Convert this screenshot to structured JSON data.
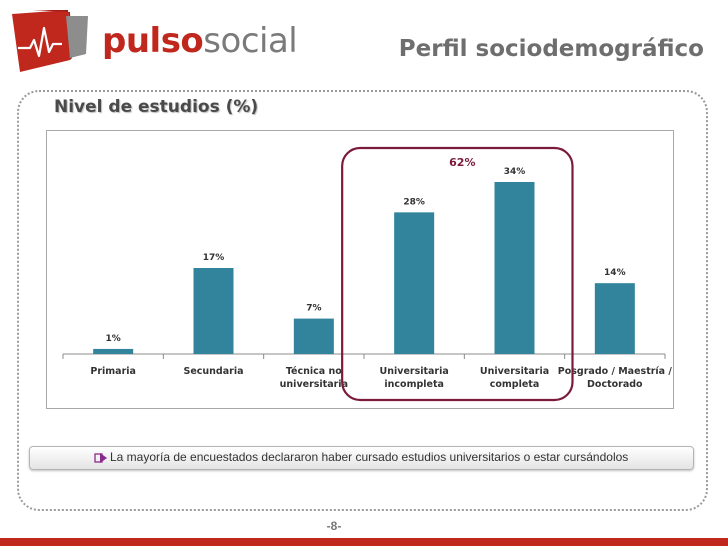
{
  "header": {
    "logo_text_part1": "pulso",
    "logo_text_part2": "social",
    "title": "Perfil sociodemográfico"
  },
  "section": {
    "title": "Nivel de estudios (%)"
  },
  "chart_data": {
    "type": "bar",
    "categories": [
      [
        "Primaria"
      ],
      [
        "Secundaria"
      ],
      [
        "Técnica no",
        "universitaria"
      ],
      [
        "Universitaria",
        "incompleta"
      ],
      [
        "Universitaria",
        "completa"
      ],
      [
        "Posgrado / Maestría /",
        "Doctorado"
      ]
    ],
    "values": [
      1,
      17,
      7,
      28,
      34,
      14
    ],
    "value_labels": [
      "1%",
      "17%",
      "7%",
      "28%",
      "34%",
      "14%"
    ],
    "ylim": [
      0,
      34
    ],
    "grid": false,
    "bar_color": "#31849b",
    "highlight": {
      "categories": [
        "Universitaria incompleta",
        "Universitaria completa"
      ],
      "label": "62%",
      "color": "#7b1a3b"
    }
  },
  "callout": {
    "icon": "arrow-right-icon",
    "text": "La mayoría de encuestados declararon haber cursado estudios universitarios o estar cursándolos"
  },
  "footer": {
    "page_number": "-8-",
    "bar_color": "#c0271d"
  }
}
